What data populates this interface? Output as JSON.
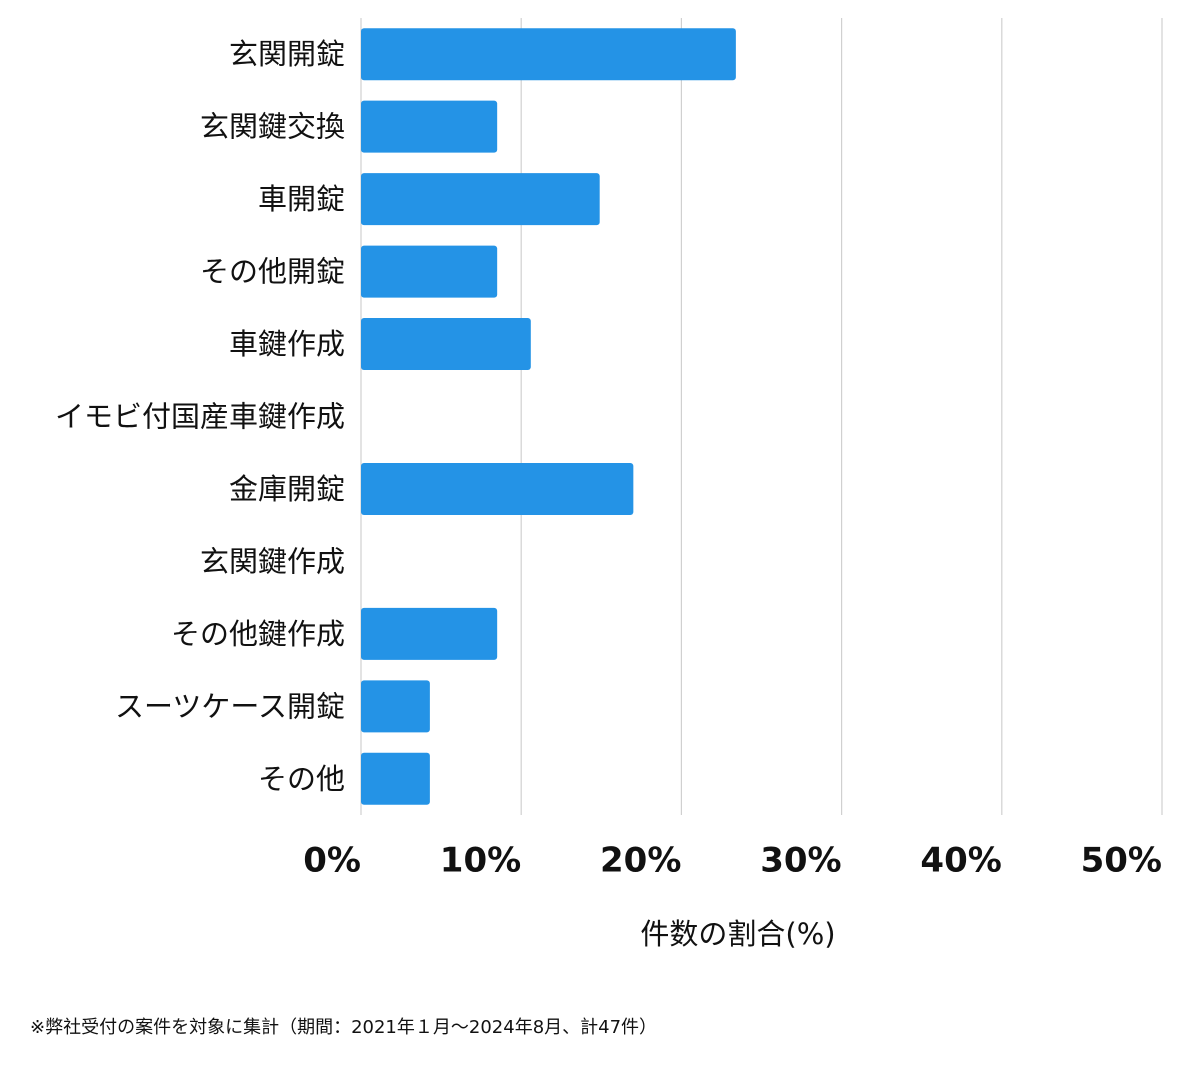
{
  "chart_data": {
    "type": "barh",
    "categories": [
      "玄関開錠",
      "玄関鍵交換",
      "車開錠",
      "その他開錠",
      "車鍵作成",
      "イモビ付国産車鍵作成",
      "金庫開錠",
      "玄関鍵作成",
      "その他鍵作成",
      "スーツケース開錠",
      "その他"
    ],
    "values": [
      23.4,
      8.5,
      14.9,
      8.5,
      10.6,
      0,
      17.0,
      0,
      8.5,
      4.3,
      4.3
    ],
    "color": "#2493e6",
    "xlim": [
      0,
      50
    ],
    "xticks": [
      {
        "value": 0,
        "label": "0%"
      },
      {
        "value": 10,
        "label": "10%"
      },
      {
        "value": 20,
        "label": "20%"
      },
      {
        "value": 30,
        "label": "30%"
      },
      {
        "value": 40,
        "label": "40%"
      },
      {
        "value": 50,
        "label": "50%"
      }
    ],
    "grid": true,
    "xlabel": "件数の割合(%)",
    "note": "※弊社受付の案件を対象に集計（期間：2021年１月～2024年8月、計47件）"
  }
}
